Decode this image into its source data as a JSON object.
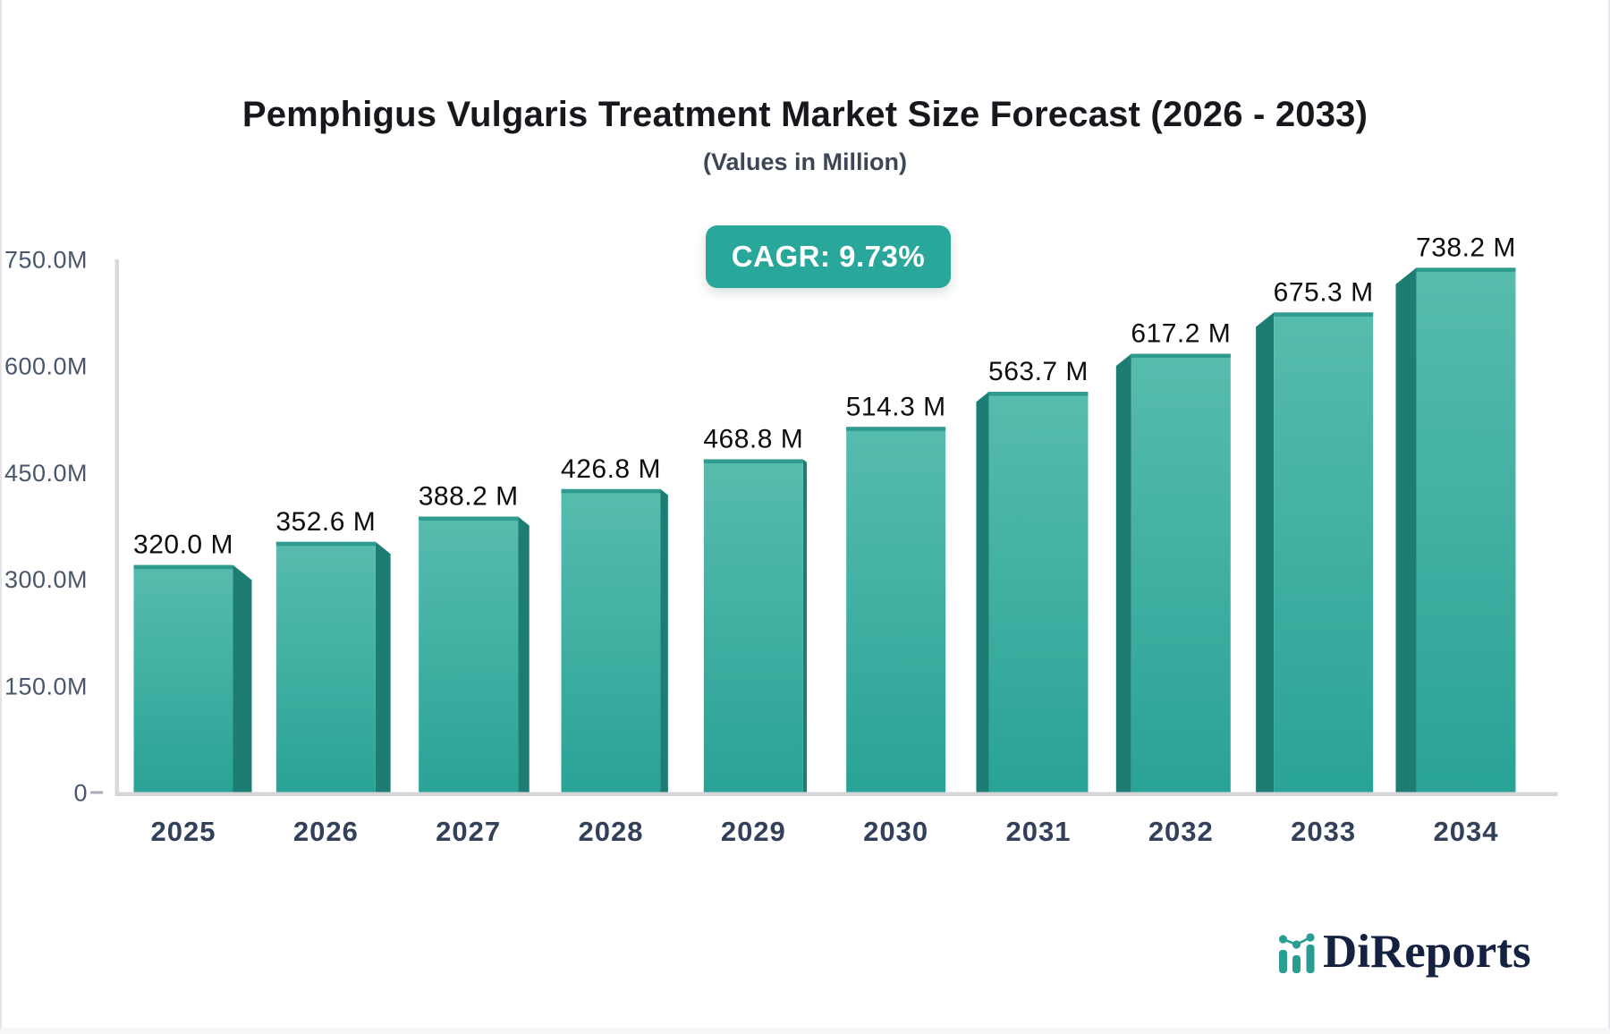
{
  "header": {
    "title": "Pemphigus Vulgaris Treatment Market Size Forecast (2026 - 2033)",
    "subtitle": "(Values in Million)",
    "cagr_badge": "CAGR: 9.73%"
  },
  "chart_data": {
    "type": "bar",
    "title": "Pemphigus Vulgaris Treatment Market Size Forecast (2026 - 2033)",
    "subtitle": "(Values in Million)",
    "annotation": "CAGR: 9.73%",
    "categories": [
      "2025",
      "2026",
      "2027",
      "2028",
      "2029",
      "2030",
      "2031",
      "2032",
      "2033",
      "2034"
    ],
    "values": [
      320.0,
      352.6,
      388.2,
      426.8,
      468.8,
      514.3,
      563.7,
      617.2,
      675.3,
      738.2
    ],
    "value_labels": [
      "320.0 M",
      "352.6 M",
      "388.2 M",
      "426.8 M",
      "468.8 M",
      "514.3 M",
      "563.7 M",
      "617.2 M",
      "675.3 M",
      "738.2 M"
    ],
    "ytick_labels": [
      "0",
      "150.0M",
      "300.0M",
      "450.0M",
      "600.0M",
      "750.0M"
    ],
    "ytick_values": [
      0,
      150,
      300,
      450,
      600,
      750
    ],
    "ylim": [
      0,
      750
    ],
    "xlabel": "",
    "ylabel": "",
    "grid": false,
    "legend": "none",
    "bar_style": "3d-perspective-center-vanishing",
    "colors": {
      "bar_gradient_top": "#57BCAE",
      "bar_gradient_bottom": "#29A396",
      "bar_side": "#1E7D72",
      "bar_top_edge": "#2E9B8E",
      "badge_bg": "#2AA79B",
      "badge_text": "#FFFFFF",
      "axis_line": "#D9D9DE",
      "baseline": "#D5D5DA",
      "zero_tick": "#A8ADB9",
      "ytick_text": "#4A566B",
      "xtick_text": "#334059",
      "value_text": "#0C0D0F",
      "logo_accent": "#2A9D92",
      "logo_text_color": "#152140"
    }
  },
  "branding": {
    "logo_text": "DiReports"
  }
}
